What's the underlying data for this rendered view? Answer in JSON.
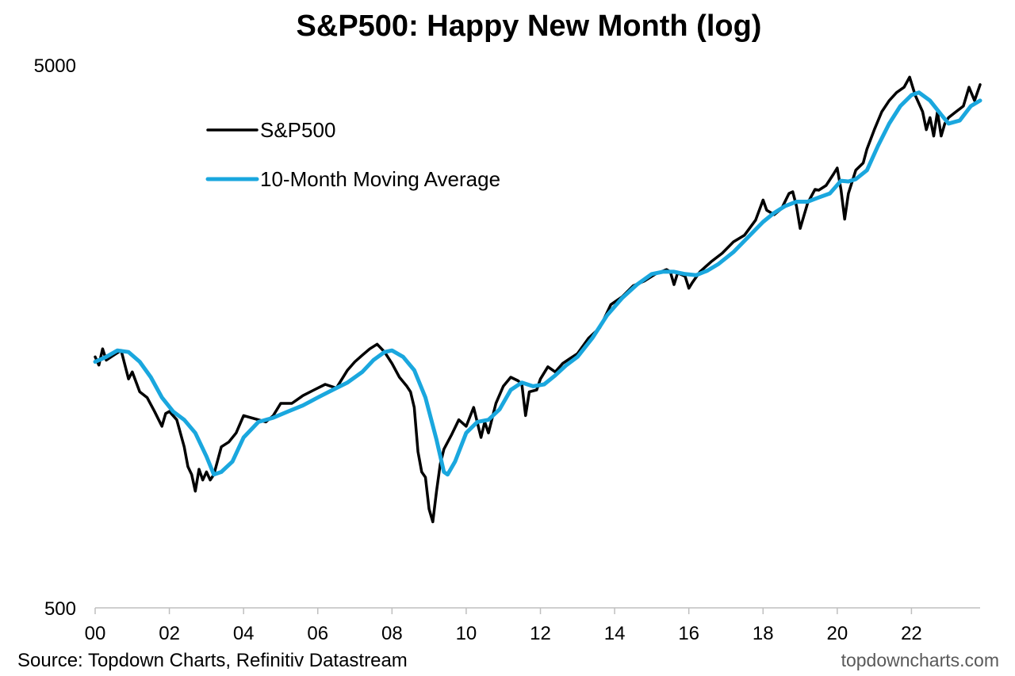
{
  "chart_data": {
    "type": "line",
    "title": "S&P500: Happy New Month (log)",
    "yscale": "log",
    "ylim": [
      500,
      5000
    ],
    "y_ticks": [
      500,
      5000
    ],
    "xlim": [
      2000.0,
      2023.85
    ],
    "x_ticks": [
      {
        "value": 2000,
        "label": "00"
      },
      {
        "value": 2002,
        "label": "02"
      },
      {
        "value": 2004,
        "label": "04"
      },
      {
        "value": 2006,
        "label": "06"
      },
      {
        "value": 2008,
        "label": "08"
      },
      {
        "value": 2010,
        "label": "10"
      },
      {
        "value": 2012,
        "label": "12"
      },
      {
        "value": 2014,
        "label": "14"
      },
      {
        "value": 2016,
        "label": "16"
      },
      {
        "value": 2018,
        "label": "18"
      },
      {
        "value": 2020,
        "label": "20"
      },
      {
        "value": 2022,
        "label": "22"
      }
    ],
    "grid": false,
    "legend_position": "top-left",
    "series": [
      {
        "name": "S&P500",
        "color": "#000000",
        "x": [
          2000.0,
          2000.1,
          2000.2,
          2000.3,
          2000.5,
          2000.7,
          2000.9,
          2001.0,
          2001.2,
          2001.4,
          2001.6,
          2001.8,
          2001.9,
          2002.0,
          2002.2,
          2002.4,
          2002.5,
          2002.6,
          2002.7,
          2002.8,
          2002.9,
          2003.0,
          2003.1,
          2003.2,
          2003.4,
          2003.6,
          2003.8,
          2004.0,
          2004.2,
          2004.4,
          2004.6,
          2004.8,
          2005.0,
          2005.3,
          2005.6,
          2005.9,
          2006.2,
          2006.5,
          2006.8,
          2007.0,
          2007.2,
          2007.4,
          2007.6,
          2007.8,
          2008.0,
          2008.2,
          2008.4,
          2008.5,
          2008.6,
          2008.7,
          2008.8,
          2008.9,
          2009.0,
          2009.1,
          2009.2,
          2009.3,
          2009.4,
          2009.6,
          2009.8,
          2010.0,
          2010.2,
          2010.4,
          2010.5,
          2010.6,
          2010.8,
          2011.0,
          2011.2,
          2011.4,
          2011.5,
          2011.6,
          2011.7,
          2011.9,
          2012.0,
          2012.2,
          2012.4,
          2012.6,
          2012.8,
          2013.0,
          2013.3,
          2013.6,
          2013.9,
          2014.2,
          2014.5,
          2014.8,
          2015.1,
          2015.4,
          2015.5,
          2015.6,
          2015.7,
          2015.9,
          2016.0,
          2016.1,
          2016.3,
          2016.6,
          2016.9,
          2017.2,
          2017.5,
          2017.8,
          2018.0,
          2018.1,
          2018.3,
          2018.5,
          2018.7,
          2018.8,
          2018.9,
          2019.0,
          2019.2,
          2019.4,
          2019.5,
          2019.7,
          2019.9,
          2020.0,
          2020.1,
          2020.2,
          2020.3,
          2020.5,
          2020.7,
          2020.8,
          2021.0,
          2021.2,
          2021.4,
          2021.6,
          2021.8,
          2021.95,
          2022.1,
          2022.3,
          2022.4,
          2022.5,
          2022.6,
          2022.7,
          2022.8,
          2022.9,
          2023.0,
          2023.2,
          2023.4,
          2023.55,
          2023.7,
          2023.85
        ],
        "y": [
          1450,
          1400,
          1500,
          1430,
          1460,
          1490,
          1320,
          1360,
          1250,
          1220,
          1150,
          1080,
          1140,
          1150,
          1110,
          990,
          910,
          880,
          820,
          900,
          860,
          890,
          860,
          880,
          990,
          1010,
          1050,
          1130,
          1120,
          1110,
          1100,
          1130,
          1190,
          1190,
          1230,
          1260,
          1290,
          1270,
          1370,
          1420,
          1460,
          1500,
          1530,
          1480,
          1410,
          1330,
          1280,
          1250,
          1170,
          970,
          890,
          870,
          760,
          720,
          820,
          920,
          980,
          1040,
          1110,
          1080,
          1170,
          1030,
          1100,
          1050,
          1190,
          1280,
          1330,
          1310,
          1290,
          1130,
          1250,
          1260,
          1320,
          1390,
          1360,
          1410,
          1440,
          1470,
          1570,
          1640,
          1810,
          1870,
          1960,
          2000,
          2060,
          2100,
          2080,
          1970,
          2070,
          2040,
          1940,
          1990,
          2080,
          2170,
          2250,
          2360,
          2430,
          2590,
          2820,
          2700,
          2650,
          2720,
          2900,
          2920,
          2750,
          2500,
          2780,
          2950,
          2940,
          3000,
          3150,
          3230,
          2950,
          2600,
          2900,
          3200,
          3300,
          3500,
          3800,
          4100,
          4300,
          4450,
          4550,
          4750,
          4400,
          4100,
          3800,
          4000,
          3700,
          4100,
          3700,
          3900,
          4000,
          4100,
          4200,
          4550,
          4300,
          4600
        ]
      },
      {
        "name": "10-Month Moving Average",
        "color": "#1aa7de",
        "x": [
          2000.0,
          2000.3,
          2000.6,
          2000.9,
          2001.2,
          2001.5,
          2001.8,
          2002.1,
          2002.4,
          2002.7,
          2003.0,
          2003.2,
          2003.4,
          2003.7,
          2004.0,
          2004.4,
          2004.8,
          2005.2,
          2005.6,
          2006.0,
          2006.4,
          2006.8,
          2007.2,
          2007.5,
          2007.8,
          2008.0,
          2008.3,
          2008.6,
          2008.9,
          2009.2,
          2009.4,
          2009.5,
          2009.7,
          2010.0,
          2010.3,
          2010.6,
          2010.9,
          2011.2,
          2011.5,
          2011.8,
          2012.1,
          2012.4,
          2012.7,
          2013.0,
          2013.4,
          2013.8,
          2014.2,
          2014.6,
          2015.0,
          2015.3,
          2015.6,
          2015.9,
          2016.2,
          2016.5,
          2016.8,
          2017.2,
          2017.6,
          2018.0,
          2018.3,
          2018.6,
          2018.9,
          2019.2,
          2019.5,
          2019.8,
          2020.1,
          2020.3,
          2020.5,
          2020.8,
          2021.1,
          2021.4,
          2021.7,
          2022.0,
          2022.2,
          2022.5,
          2022.8,
          2023.0,
          2023.3,
          2023.6,
          2023.85
        ],
        "y": [
          1420,
          1450,
          1490,
          1480,
          1420,
          1330,
          1220,
          1150,
          1110,
          1050,
          950,
          880,
          890,
          930,
          1030,
          1100,
          1120,
          1150,
          1180,
          1220,
          1260,
          1300,
          1360,
          1430,
          1480,
          1490,
          1450,
          1370,
          1220,
          1020,
          890,
          880,
          930,
          1050,
          1100,
          1110,
          1160,
          1260,
          1300,
          1280,
          1290,
          1340,
          1400,
          1450,
          1570,
          1730,
          1860,
          1970,
          2060,
          2080,
          2080,
          2060,
          2050,
          2090,
          2150,
          2260,
          2410,
          2570,
          2670,
          2750,
          2800,
          2800,
          2850,
          2900,
          3060,
          3050,
          3080,
          3200,
          3550,
          3900,
          4200,
          4400,
          4450,
          4300,
          4050,
          3900,
          3950,
          4200,
          4300
        ]
      }
    ]
  },
  "footer": {
    "source": "Source: Topdown Charts, Refinitiv Datastream",
    "brand": "topdowncharts.com"
  }
}
